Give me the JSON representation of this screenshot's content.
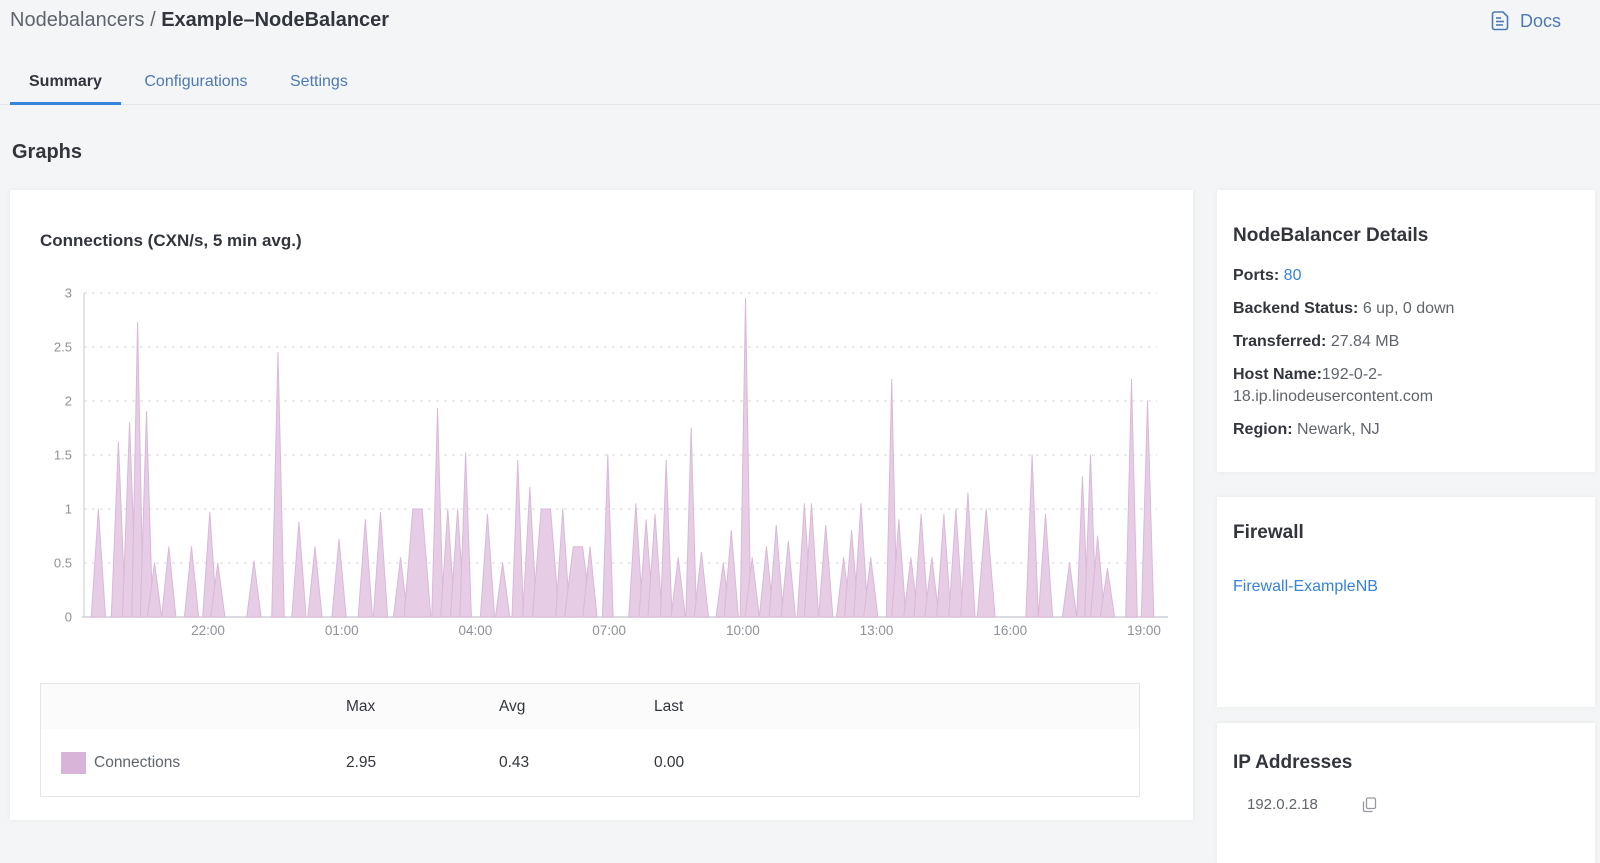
{
  "header": {
    "breadcrumb_prefix": "Nodebalancers / ",
    "breadcrumb_current": "Example–NodeBalancer",
    "docs_label": "Docs"
  },
  "tabs": [
    {
      "label": "Summary",
      "active": true
    },
    {
      "label": "Configurations",
      "active": false
    },
    {
      "label": "Settings",
      "active": false
    }
  ],
  "section_title": "Graphs",
  "chart_data": {
    "type": "area",
    "title": "Connections (CXN/s, 5 min avg.)",
    "series_name": "Connections",
    "unit": "CXN/s",
    "ylim": [
      0,
      3
    ],
    "y_ticks": [
      0,
      0.5,
      1,
      1.5,
      2,
      2.5,
      3
    ],
    "x_tick_labels": [
      "22:00",
      "01:00",
      "04:00",
      "07:00",
      "10:00",
      "13:00",
      "16:00",
      "19:00"
    ],
    "x_tick_hours": [
      3,
      6,
      9,
      12,
      15,
      18,
      21,
      24
    ],
    "x_range_hours": [
      0,
      24.2
    ],
    "grid": "dashed-horizontal",
    "legend_position": "table-below",
    "colors": {
      "area_fill": "#e6cce4",
      "area_stroke": "#d9b9d7",
      "swatch": "#d8b4d8",
      "grid": "#e0e1e4",
      "axis": "#cfd1d5",
      "tick_text": "#8e9298"
    },
    "spikes_t_h_w_flat": [
      [
        0.54,
        1.0
      ],
      [
        0.99,
        1.62
      ],
      [
        1.24,
        1.8
      ],
      [
        1.42,
        2.73,
        0.13
      ],
      [
        1.62,
        1.9,
        0.14
      ],
      [
        1.8,
        0.5
      ],
      [
        2.12,
        0.65
      ],
      [
        2.63,
        0.65
      ],
      [
        3.04,
        0.97
      ],
      [
        3.22,
        0.5
      ],
      [
        4.03,
        0.52
      ],
      [
        4.57,
        2.45,
        0.14
      ],
      [
        5.04,
        0.88
      ],
      [
        5.4,
        0.65
      ],
      [
        5.94,
        0.72
      ],
      [
        6.53,
        0.9
      ],
      [
        6.87,
        0.97
      ],
      [
        7.32,
        0.55
      ],
      [
        7.7,
        1.0,
        0.3,
        1
      ],
      [
        8.15,
        1.93,
        0.13
      ],
      [
        8.38,
        1.0
      ],
      [
        8.6,
        1.0
      ],
      [
        8.78,
        1.52,
        0.13
      ],
      [
        9.27,
        0.95
      ],
      [
        9.61,
        0.5
      ],
      [
        9.95,
        1.45,
        0.13
      ],
      [
        10.22,
        1.2
      ],
      [
        10.58,
        1.0,
        0.3,
        1
      ],
      [
        10.96,
        1.0
      ],
      [
        11.3,
        0.65,
        0.3,
        1
      ],
      [
        11.57,
        0.65
      ],
      [
        11.97,
        1.5,
        0.12
      ],
      [
        12.6,
        1.05
      ],
      [
        12.83,
        0.9
      ],
      [
        13.03,
        0.95
      ],
      [
        13.28,
        1.45,
        0.13
      ],
      [
        13.55,
        0.55
      ],
      [
        13.84,
        1.75,
        0.12
      ],
      [
        14.07,
        0.6
      ],
      [
        14.56,
        0.5
      ],
      [
        14.74,
        0.8
      ],
      [
        15.06,
        2.95,
        0.12
      ],
      [
        15.21,
        0.55
      ],
      [
        15.53,
        0.65
      ],
      [
        15.75,
        0.85
      ],
      [
        16.02,
        0.7
      ],
      [
        16.38,
        1.05
      ],
      [
        16.54,
        1.05
      ],
      [
        16.86,
        0.85
      ],
      [
        17.26,
        0.55
      ],
      [
        17.44,
        0.8
      ],
      [
        17.65,
        1.05
      ],
      [
        17.87,
        0.55
      ],
      [
        18.34,
        2.2,
        0.12
      ],
      [
        18.5,
        0.9
      ],
      [
        18.77,
        0.55
      ],
      [
        19.0,
        0.95
      ],
      [
        19.24,
        0.55
      ],
      [
        19.51,
        0.95
      ],
      [
        19.78,
        1.0
      ],
      [
        20.05,
        1.15
      ],
      [
        20.46,
        1.0,
        0.2
      ],
      [
        21.49,
        1.5,
        0.14
      ],
      [
        21.79,
        0.95
      ],
      [
        22.33,
        0.5
      ],
      [
        22.62,
        1.3,
        0.13
      ],
      [
        22.8,
        1.5,
        0.13
      ],
      [
        22.96,
        0.75
      ],
      [
        23.18,
        0.45
      ],
      [
        23.72,
        2.2,
        0.13
      ],
      [
        24.08,
        2.0,
        0.14
      ]
    ],
    "summary": {
      "max": 2.95,
      "avg": 0.43,
      "last": 0.0
    }
  },
  "legend_table": {
    "headers": {
      "max": "Max",
      "avg": "Avg",
      "last": "Last"
    },
    "row": {
      "label": "Connections",
      "max": "2.95",
      "avg": "0.43",
      "last": "0.00"
    }
  },
  "details_panel": {
    "title": "NodeBalancer Details",
    "ports_label": "Ports: ",
    "ports_value": "80",
    "backend_label": "Backend Status: ",
    "backend_value": "6 up, 0 down",
    "transferred_label": "Transferred: ",
    "transferred_value": "27.84 MB",
    "hostname_label": "Host Name:",
    "hostname_value": "192-0-2-18.ip.linodeusercontent.com",
    "region_label": "Region: ",
    "region_value": "Newark, NJ"
  },
  "firewall_panel": {
    "title": "Firewall",
    "link": "Firewall-ExampleNB"
  },
  "ip_panel": {
    "title": "IP Addresses",
    "ip": "192.0.2.18"
  }
}
